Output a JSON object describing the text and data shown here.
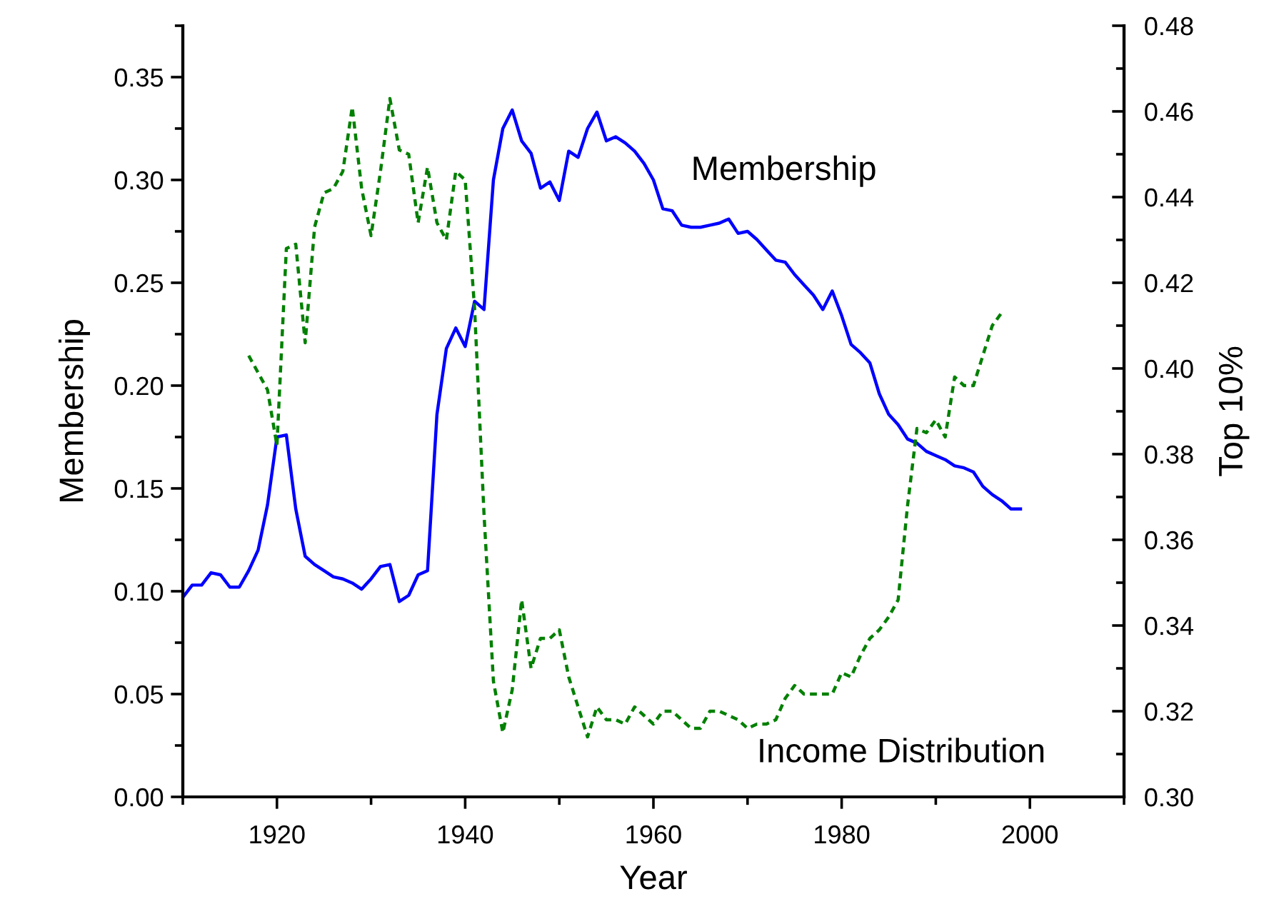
{
  "chart_data": {
    "type": "line",
    "xlabel": "Year",
    "ylabel": "Membership",
    "y2label": "Top 10%",
    "xlim": [
      1910,
      2010
    ],
    "xticks": [
      1920,
      1940,
      1960,
      1980,
      2000
    ],
    "ylim": [
      0,
      0.375
    ],
    "yticks": [
      {
        "value": 0,
        "label": "0.00"
      },
      {
        "value": 0.05,
        "label": "0.05"
      },
      {
        "value": 0.1,
        "label": "0.10"
      },
      {
        "value": 0.15,
        "label": "0.15"
      },
      {
        "value": 0.2,
        "label": "0.20"
      },
      {
        "value": 0.25,
        "label": "0.25"
      },
      {
        "value": 0.3,
        "label": "0.30"
      },
      {
        "value": 0.35,
        "label": "0.35"
      }
    ],
    "y2lim": [
      0.3,
      0.48
    ],
    "y2ticks": [
      {
        "value": 0.3,
        "label": "0.30"
      },
      {
        "value": 0.32,
        "label": "0.32"
      },
      {
        "value": 0.34,
        "label": "0.34"
      },
      {
        "value": 0.36,
        "label": "0.36"
      },
      {
        "value": 0.38,
        "label": "0.38"
      },
      {
        "value": 0.4,
        "label": "0.40"
      },
      {
        "value": 0.42,
        "label": "0.42"
      },
      {
        "value": 0.44,
        "label": "0.44"
      },
      {
        "value": 0.46,
        "label": "0.46"
      },
      {
        "value": 0.48,
        "label": "0.48"
      }
    ],
    "grid": false,
    "legend": false,
    "marker": "none",
    "series": [
      {
        "name": "Membership",
        "color": "#0000ff",
        "line_style": "solid",
        "x": [
          1910,
          1911,
          1912,
          1913,
          1914,
          1915,
          1916,
          1917,
          1918,
          1919,
          1920,
          1921,
          1922,
          1923,
          1924,
          1925,
          1926,
          1927,
          1928,
          1929,
          1930,
          1931,
          1932,
          1933,
          1934,
          1935,
          1936,
          1937,
          1938,
          1939,
          1940,
          1941,
          1942,
          1943,
          1944,
          1945,
          1946,
          1947,
          1948,
          1949,
          1950,
          1951,
          1952,
          1953,
          1954,
          1955,
          1956,
          1957,
          1958,
          1959,
          1960,
          1961,
          1962,
          1963,
          1964,
          1965,
          1966,
          1967,
          1968,
          1969,
          1970,
          1971,
          1972,
          1973,
          1974,
          1975,
          1976,
          1977,
          1978,
          1979,
          1980,
          1981,
          1982,
          1983,
          1984,
          1985,
          1986,
          1987,
          1988,
          1989,
          1990,
          1991,
          1992,
          1993,
          1994,
          1995,
          1996,
          1997,
          1998,
          1999
        ],
        "values": [
          0.097,
          0.103,
          0.103,
          0.109,
          0.108,
          0.102,
          0.102,
          0.11,
          0.12,
          0.142,
          0.175,
          0.176,
          0.14,
          0.117,
          0.113,
          0.11,
          0.107,
          0.106,
          0.104,
          0.101,
          0.106,
          0.112,
          0.113,
          0.095,
          0.098,
          0.108,
          0.11,
          0.186,
          0.218,
          0.228,
          0.219,
          0.241,
          0.237,
          0.3,
          0.325,
          0.334,
          0.319,
          0.313,
          0.296,
          0.299,
          0.29,
          0.314,
          0.311,
          0.325,
          0.333,
          0.319,
          0.321,
          0.318,
          0.314,
          0.308,
          0.3,
          0.286,
          0.285,
          0.278,
          0.277,
          0.277,
          0.278,
          0.279,
          0.281,
          0.274,
          0.275,
          0.271,
          0.266,
          0.261,
          0.26,
          0.254,
          0.249,
          0.244,
          0.237,
          0.246,
          0.234,
          0.22,
          0.216,
          0.211,
          0.196,
          0.186,
          0.181,
          0.174,
          0.172,
          0.168,
          0.166,
          0.164,
          0.161,
          0.16,
          0.158,
          0.151,
          0.147,
          0.144,
          0.14,
          0.14
        ]
      },
      {
        "name": "Income Distribution",
        "color": "#008000",
        "line_style": "dotted",
        "axis": "y2",
        "x": [
          1917,
          1918,
          1919,
          1920,
          1921,
          1922,
          1923,
          1924,
          1925,
          1926,
          1927,
          1928,
          1929,
          1930,
          1931,
          1932,
          1933,
          1934,
          1935,
          1936,
          1937,
          1938,
          1939,
          1940,
          1941,
          1942,
          1943,
          1944,
          1945,
          1946,
          1947,
          1948,
          1949,
          1950,
          1951,
          1952,
          1953,
          1954,
          1955,
          1956,
          1957,
          1958,
          1959,
          1960,
          1961,
          1962,
          1963,
          1964,
          1965,
          1966,
          1967,
          1968,
          1969,
          1970,
          1971,
          1972,
          1973,
          1974,
          1975,
          1976,
          1977,
          1978,
          1979,
          1980,
          1981,
          1982,
          1983,
          1984,
          1985,
          1986,
          1987,
          1988,
          1989,
          1990,
          1991,
          1992,
          1993,
          1994,
          1995,
          1996,
          1997
        ],
        "values": [
          0.403,
          0.399,
          0.395,
          0.382,
          0.428,
          0.429,
          0.406,
          0.433,
          0.441,
          0.442,
          0.446,
          0.461,
          0.442,
          0.431,
          0.446,
          0.463,
          0.451,
          0.45,
          0.434,
          0.447,
          0.434,
          0.43,
          0.446,
          0.444,
          0.414,
          0.366,
          0.327,
          0.315,
          0.325,
          0.346,
          0.33,
          0.337,
          0.337,
          0.339,
          0.328,
          0.321,
          0.314,
          0.321,
          0.318,
          0.318,
          0.317,
          0.321,
          0.319,
          0.317,
          0.32,
          0.32,
          0.318,
          0.316,
          0.316,
          0.32,
          0.32,
          0.319,
          0.318,
          0.316,
          0.317,
          0.317,
          0.318,
          0.323,
          0.326,
          0.324,
          0.324,
          0.324,
          0.324,
          0.329,
          0.328,
          0.333,
          0.337,
          0.339,
          0.342,
          0.346,
          0.368,
          0.386,
          0.385,
          0.388,
          0.384,
          0.398,
          0.396,
          0.396,
          0.403,
          0.41,
          0.413
        ]
      }
    ]
  }
}
